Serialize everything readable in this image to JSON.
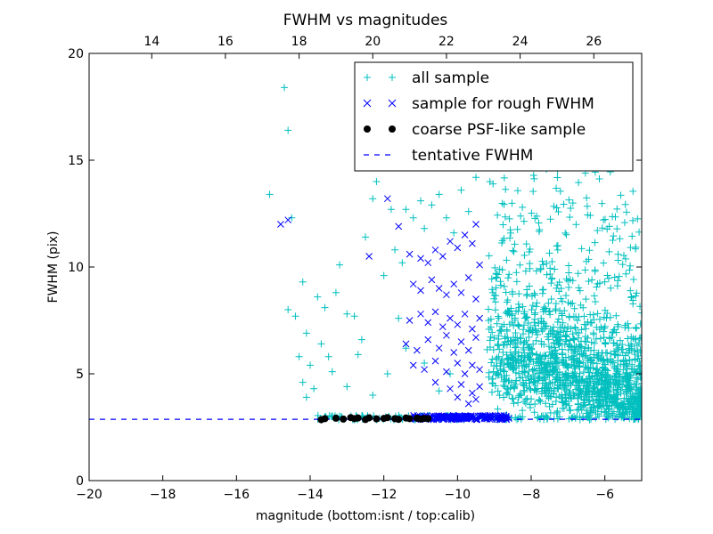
{
  "chart_data": {
    "type": "scatter",
    "title": "FWHM vs magnitudes",
    "xlabel": "magnitude (bottom:isnt / top:calib)",
    "ylabel": "FWHM (pix)",
    "xlim": [
      -20,
      -5
    ],
    "ylim": [
      0,
      20
    ],
    "x_ticks": [
      -20,
      -18,
      -16,
      -14,
      -12,
      -10,
      -8,
      -6
    ],
    "x_tick_labels": [
      "−20",
      "−18",
      "−16",
      "−14",
      "−12",
      "−10",
      "−8",
      "−6"
    ],
    "y_ticks": [
      0,
      5,
      10,
      15,
      20
    ],
    "y_tick_labels": [
      "0",
      "5",
      "10",
      "15",
      "20"
    ],
    "top_axis": {
      "offset": 32.3,
      "ticks": [
        14,
        16,
        18,
        20,
        22,
        24,
        26
      ],
      "tick_labels": [
        "14",
        "16",
        "18",
        "20",
        "22",
        "24",
        "26"
      ]
    },
    "grid": false,
    "legend_position": "top-right",
    "series": [
      {
        "name": "all sample",
        "marker": "+",
        "color": "#00bfbf",
        "points": [
          [
            -15.1,
            13.4
          ],
          [
            -14.7,
            18.4
          ],
          [
            -14.6,
            16.4
          ],
          [
            -14.5,
            12.3
          ],
          [
            -14.6,
            8.0
          ],
          [
            -14.4,
            7.7
          ],
          [
            -14.3,
            5.8
          ],
          [
            -14.2,
            9.3
          ],
          [
            -14.1,
            6.9
          ],
          [
            -14.0,
            5.4
          ],
          [
            -14.2,
            4.6
          ],
          [
            -14.1,
            3.9
          ],
          [
            -13.9,
            4.3
          ],
          [
            -13.8,
            8.6
          ],
          [
            -13.6,
            8.1
          ],
          [
            -13.7,
            6.4
          ],
          [
            -13.5,
            5.8
          ],
          [
            -13.3,
            8.8
          ],
          [
            -13.2,
            10.1
          ],
          [
            -13.0,
            7.8
          ],
          [
            -12.8,
            7.7
          ],
          [
            -12.7,
            5.9
          ],
          [
            -12.5,
            11.4
          ],
          [
            -12.3,
            13.2
          ],
          [
            -12.2,
            14.0
          ],
          [
            -12.0,
            9.6
          ],
          [
            -11.8,
            12.7
          ],
          [
            -11.7,
            10.8
          ],
          [
            -11.5,
            10.2
          ],
          [
            -11.4,
            12.7
          ],
          [
            -11.2,
            12.3
          ],
          [
            -11.0,
            13.1
          ],
          [
            -10.9,
            11.8
          ],
          [
            -10.7,
            12.9
          ],
          [
            -10.5,
            13.4
          ],
          [
            -10.3,
            12.3
          ],
          [
            -10.1,
            11.6
          ],
          [
            -9.9,
            13.6
          ],
          [
            -9.7,
            12.6
          ],
          [
            -9.5,
            14.2
          ],
          [
            -12.3,
            4.0
          ],
          [
            -11.9,
            5.0
          ],
          [
            -11.4,
            6.2
          ],
          [
            -10.9,
            5.5
          ],
          [
            -10.5,
            4.2
          ],
          [
            -10.2,
            5.0
          ],
          [
            -13.4,
            5.1
          ],
          [
            -13.0,
            4.4
          ],
          [
            -12.6,
            6.6
          ],
          [
            -11.6,
            7.6
          ]
        ]
      },
      {
        "name": "sample for rough FWHM",
        "marker": "x",
        "color": "#0000ff",
        "points": [
          [
            -14.8,
            12.0
          ],
          [
            -14.6,
            12.2
          ],
          [
            -12.4,
            10.5
          ],
          [
            -11.3,
            10.6
          ],
          [
            -11.0,
            10.4
          ],
          [
            -10.8,
            10.2
          ],
          [
            -10.6,
            10.8
          ],
          [
            -10.4,
            10.5
          ],
          [
            -10.2,
            11.2
          ],
          [
            -10.0,
            10.9
          ],
          [
            -9.8,
            11.5
          ],
          [
            -9.6,
            11.1
          ],
          [
            -11.2,
            9.2
          ],
          [
            -11.0,
            8.9
          ],
          [
            -10.7,
            9.4
          ],
          [
            -10.5,
            9.0
          ],
          [
            -10.3,
            8.7
          ],
          [
            -10.1,
            9.2
          ],
          [
            -9.9,
            8.8
          ],
          [
            -9.7,
            9.5
          ],
          [
            -9.5,
            8.5
          ],
          [
            -11.3,
            7.5
          ],
          [
            -11.0,
            7.8
          ],
          [
            -10.8,
            7.4
          ],
          [
            -10.6,
            7.9
          ],
          [
            -10.4,
            7.2
          ],
          [
            -10.2,
            7.6
          ],
          [
            -10.0,
            7.3
          ],
          [
            -9.8,
            7.8
          ],
          [
            -9.6,
            7.1
          ],
          [
            -9.4,
            7.6
          ],
          [
            -11.4,
            6.4
          ],
          [
            -11.1,
            6.1
          ],
          [
            -10.8,
            6.6
          ],
          [
            -10.5,
            6.2
          ],
          [
            -10.3,
            6.8
          ],
          [
            -10.1,
            6.0
          ],
          [
            -9.9,
            6.5
          ],
          [
            -9.7,
            6.1
          ],
          [
            -9.5,
            6.7
          ],
          [
            -11.2,
            5.4
          ],
          [
            -10.9,
            5.2
          ],
          [
            -10.6,
            5.6
          ],
          [
            -10.3,
            5.1
          ],
          [
            -10.0,
            5.5
          ],
          [
            -9.8,
            5.0
          ],
          [
            -9.6,
            5.4
          ],
          [
            -9.4,
            5.2
          ],
          [
            -10.6,
            4.6
          ],
          [
            -10.2,
            4.3
          ],
          [
            -9.9,
            4.5
          ],
          [
            -9.6,
            4.1
          ],
          [
            -9.4,
            4.4
          ],
          [
            -10.0,
            3.9
          ],
          [
            -9.7,
            3.6
          ],
          [
            -9.5,
            3.8
          ],
          [
            -11.9,
            13.2
          ],
          [
            -11.6,
            11.9
          ],
          [
            -9.5,
            12.0
          ],
          [
            -9.4,
            10.1
          ]
        ]
      },
      {
        "name": "coarse PSF-like sample",
        "marker": "o",
        "color": "#000000",
        "x": [
          -13.7,
          -13.6,
          -13.3,
          -13.1,
          -12.9,
          -12.8,
          -12.7,
          -12.5,
          -12.4,
          -12.2,
          -12.0,
          -11.9,
          -11.7,
          -11.6,
          -11.4,
          -11.3,
          -11.1,
          -11.0,
          -10.9,
          -10.8
        ],
        "y": [
          2.85,
          2.9,
          2.92,
          2.88,
          2.95,
          2.9,
          2.93,
          2.86,
          2.94,
          2.89,
          2.91,
          2.95,
          2.9,
          2.87,
          2.93,
          2.9,
          2.92,
          2.88,
          2.91,
          2.9
        ]
      },
      {
        "name": "tentative FWHM",
        "marker": "dashed-line",
        "color": "#0000ff",
        "y_value": 2.87
      }
    ]
  },
  "colors": {
    "frame": "#000000",
    "background": "#ffffff"
  }
}
